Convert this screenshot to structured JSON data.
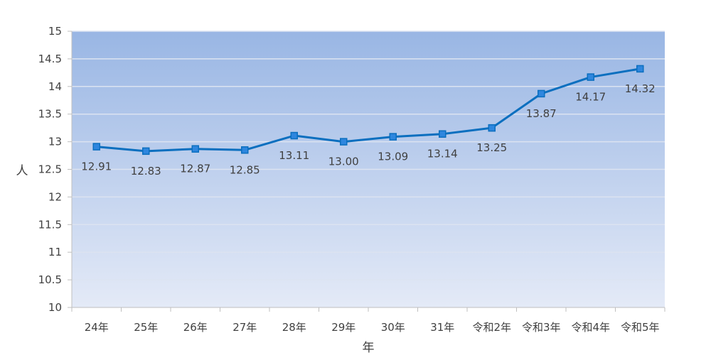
{
  "chart_data": {
    "type": "line",
    "categories": [
      "24年",
      "25年",
      "26年",
      "27年",
      "28年",
      "29年",
      "30年",
      "31年",
      "令和2年",
      "令和3年",
      "令和4年",
      "令和5年"
    ],
    "series": [
      {
        "values": [
          12.91,
          12.83,
          12.87,
          12.85,
          13.11,
          13.0,
          13.09,
          13.14,
          13.25,
          13.87,
          14.17,
          14.32
        ]
      }
    ],
    "data_labels": [
      "12.91",
      "12.83",
      "12.87",
      "12.85",
      "13.11",
      "13.00",
      "13.09",
      "13.14",
      "13.25",
      "13.87",
      "14.17",
      "14.32"
    ],
    "xlabel": "年",
    "ylabel": "人",
    "ylim": [
      10,
      15
    ],
    "yticks": [
      "10",
      "10.5",
      "11",
      "11.5",
      "12",
      "12.5",
      "13",
      "13.5",
      "14",
      "14.5",
      "15"
    ],
    "grid": true,
    "colors": {
      "line": "#0B6FBF",
      "marker_fill": "#2E86DE",
      "plot_bg_top": "#99B6E4",
      "plot_bg_bottom": "#E4EAF7",
      "grid": "#DCE3F1"
    }
  }
}
